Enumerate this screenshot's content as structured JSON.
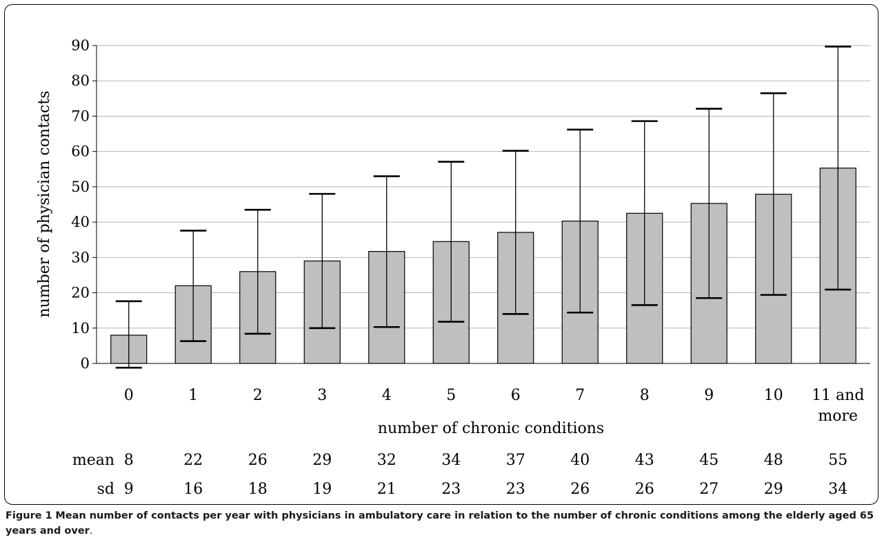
{
  "chart_data": {
    "type": "bar",
    "categories": [
      "0",
      "1",
      "2",
      "3",
      "4",
      "5",
      "6",
      "7",
      "8",
      "9",
      "10",
      "11 and more"
    ],
    "series": [
      {
        "values": [
          8.0,
          22.0,
          26.0,
          29.0,
          31.7,
          34.5,
          37.1,
          40.3,
          42.5,
          45.3,
          47.9,
          55.3
        ]
      }
    ],
    "error_bars": {
      "lower": [
        -1.2,
        6.3,
        8.4,
        10.0,
        10.3,
        11.8,
        14.0,
        14.4,
        16.5,
        18.5,
        19.4,
        20.9
      ],
      "upper": [
        17.6,
        37.6,
        43.5,
        48.0,
        53.0,
        57.1,
        60.2,
        66.2,
        68.6,
        72.1,
        76.5,
        89.7
      ]
    },
    "title": "",
    "xlabel": "number of chronic conditions",
    "ylabel": "number of physician contacts",
    "ylim": [
      0,
      90
    ],
    "yticks": [
      0,
      10,
      20,
      30,
      40,
      50,
      60,
      70,
      80,
      90
    ],
    "grid": true,
    "bar_color": "#bfbfbf",
    "grid_color": "#b3b3b3",
    "table": {
      "rows": [
        {
          "label": "mean",
          "values": [
            "8",
            "22",
            "26",
            "29",
            "32",
            "34",
            "37",
            "40",
            "43",
            "45",
            "48",
            "55"
          ]
        },
        {
          "label": "sd",
          "values": [
            "9",
            "16",
            "18",
            "19",
            "21",
            "23",
            "23",
            "26",
            "26",
            "27",
            "29",
            "34"
          ]
        }
      ]
    }
  },
  "caption": {
    "label": "Figure 1",
    "text": "Mean number of contacts per year with physicians in ambulatory care in relation to the number of chronic conditions among the elderly aged 65 years and over",
    "end": "."
  }
}
